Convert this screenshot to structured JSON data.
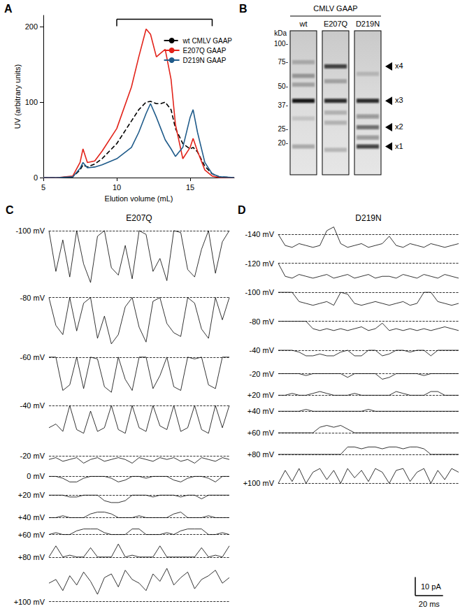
{
  "chart_data": [
    {
      "type": "line",
      "title": "A",
      "xlabel": "Elution volume (mL)",
      "ylabel": "UV (arbitrary units)",
      "x": [
        5,
        6,
        7,
        7.5,
        7.7,
        8,
        8.5,
        9,
        10,
        11,
        11.5,
        12,
        12.3,
        12.7,
        13,
        13.3,
        13.7,
        14,
        14.5,
        15,
        15.2,
        15.5,
        16,
        16.5,
        17,
        18
      ],
      "series": [
        {
          "name": "wt CMLV GAAP",
          "color": "#000000",
          "line_style": "dashed",
          "values": [
            0,
            0,
            1,
            10,
            17,
            14,
            18,
            25,
            45,
            75,
            90,
            100,
            101,
            98,
            98,
            100,
            90,
            65,
            45,
            38,
            40,
            34,
            15,
            5,
            1,
            0
          ]
        },
        {
          "name": "E207Q GAAP",
          "color": "#e2231a",
          "line_style": "solid",
          "values": [
            0,
            0,
            2,
            20,
            38,
            20,
            22,
            35,
            65,
            120,
            160,
            197,
            190,
            160,
            165,
            170,
            130,
            70,
            25,
            40,
            52,
            35,
            10,
            2,
            0,
            0
          ]
        },
        {
          "name": "D219N GAAP",
          "color": "#1f5b8a",
          "line_style": "solid",
          "values": [
            0,
            0,
            1,
            12,
            20,
            13,
            14,
            17,
            25,
            40,
            60,
            85,
            98,
            80,
            65,
            50,
            38,
            28,
            40,
            80,
            90,
            60,
            20,
            5,
            1,
            0
          ]
        }
      ],
      "xlim": [
        5,
        18
      ],
      "xticks": [
        5,
        10,
        15
      ],
      "ylim": [
        0,
        215
      ],
      "yticks": [
        0,
        100,
        200
      ],
      "grid": false,
      "legend": "upper right",
      "annotations": [
        {
          "text": "*",
          "x": 7.7,
          "y": 48
        }
      ],
      "bracket": {
        "x": [
          10,
          16.5
        ],
        "y": 210
      }
    },
    {
      "type": "gel",
      "title": "B",
      "header": "CMLV GAAP",
      "unit": "kDa",
      "log": true,
      "ylim": [
        12,
        125
      ],
      "yticks": [
        {
          "value": 100,
          "label": "100-"
        },
        {
          "value": 75,
          "label": "75-"
        },
        {
          "value": 50,
          "label": "50-"
        },
        {
          "value": 37,
          "label": "37-"
        },
        {
          "value": 25,
          "label": "25-"
        },
        {
          "value": 20,
          "label": "20-"
        }
      ],
      "lanes": [
        {
          "name": "wt",
          "bands": [
            {
              "kda": 75,
              "intensity": 0.2
            },
            {
              "kda": 60,
              "intensity": 0.3
            },
            {
              "kda": 52,
              "intensity": 0.25
            },
            {
              "kda": 40,
              "intensity": 0.95
            },
            {
              "kda": 30,
              "intensity": 0.12
            },
            {
              "kda": 19,
              "intensity": 0.25
            }
          ]
        },
        {
          "name": "E207Q",
          "bands": [
            {
              "kda": 70,
              "intensity": 0.75
            },
            {
              "kda": 55,
              "intensity": 0.25
            },
            {
              "kda": 40,
              "intensity": 0.85
            },
            {
              "kda": 33,
              "intensity": 0.2
            },
            {
              "kda": 28,
              "intensity": 0.2
            },
            {
              "kda": 18,
              "intensity": 0.2
            }
          ]
        },
        {
          "name": "D219N",
          "bands": [
            {
              "kda": 62,
              "intensity": 0.15
            },
            {
              "kda": 40,
              "intensity": 0.85
            },
            {
              "kda": 31,
              "intensity": 0.35
            },
            {
              "kda": 26,
              "intensity": 0.55
            },
            {
              "kda": 22,
              "intensity": 0.35
            },
            {
              "kda": 19,
              "intensity": 0.75
            }
          ]
        }
      ],
      "arrows": [
        {
          "label": "x4",
          "kda": 70
        },
        {
          "label": "x3",
          "kda": 40
        },
        {
          "label": "x2",
          "kda": 26
        },
        {
          "label": "x1",
          "kda": 19
        }
      ]
    },
    {
      "type": "traces",
      "title": "C",
      "subtitle": "E207Q",
      "tick_labels": false,
      "x": [
        0,
        5,
        10,
        15,
        20,
        25,
        30,
        35,
        40,
        45,
        50,
        55,
        60,
        65,
        70,
        75,
        80,
        85,
        90,
        95,
        100,
        105,
        110,
        115,
        120,
        125,
        130
      ],
      "xlim": [
        0,
        130
      ],
      "baseline": 0,
      "traces": [
        {
          "label": "-100 mV",
          "ylim": [
            -32,
            3
          ],
          "values": [
            0,
            -22,
            -5,
            -25,
            0,
            -18,
            -28,
            -3,
            0,
            -20,
            -24,
            -8,
            -26,
            0,
            -2,
            -22,
            -15,
            -27,
            0,
            -1,
            -21,
            -25,
            -10,
            0,
            -23,
            -6,
            0
          ]
        },
        {
          "label": "-80 mV",
          "ylim": [
            -28,
            3
          ],
          "values": [
            0,
            -15,
            -20,
            0,
            -18,
            -3,
            0,
            -22,
            -10,
            -25,
            -20,
            -5,
            0,
            -16,
            -24,
            -2,
            0,
            -14,
            -19,
            -21,
            0,
            -3,
            -17,
            -22,
            0,
            -12,
            0
          ]
        },
        {
          "label": "-60 mV",
          "ylim": [
            -22,
            3
          ],
          "values": [
            0,
            0,
            -18,
            -15,
            0,
            -17,
            0,
            -1,
            -16,
            -19,
            0,
            -12,
            -18,
            0,
            0,
            -17,
            -10,
            0,
            -16,
            -18,
            0,
            -1,
            0,
            -15,
            -17,
            0,
            0
          ]
        },
        {
          "label": "-40 mV",
          "ylim": [
            -22,
            3
          ],
          "values": [
            -12,
            -10,
            -14,
            0,
            -13,
            -15,
            -3,
            -14,
            -12,
            0,
            -13,
            -15,
            0,
            -12,
            -14,
            0,
            -11,
            -13,
            0,
            -14,
            -12,
            0,
            -13,
            -15,
            0,
            -12,
            0
          ]
        },
        {
          "label": "-20 mV",
          "ylim": [
            -6,
            4
          ],
          "values": [
            -2,
            -1,
            -3,
            -2,
            -1,
            -4,
            -2,
            -1,
            -3,
            -2,
            -1,
            -2,
            -4,
            -1,
            -2,
            -3,
            -1,
            -2,
            -1,
            -3,
            -2,
            -4,
            -1,
            -2,
            -3,
            -1,
            -2
          ]
        },
        {
          "label": "0 mV",
          "ylim": [
            -6,
            4
          ],
          "values": [
            0,
            0,
            -1,
            -3,
            -3,
            -1,
            0,
            0,
            0,
            -1,
            -3,
            -2,
            0,
            0,
            -1,
            0,
            0,
            0,
            -2,
            -3,
            -1,
            0,
            0,
            -1,
            -3,
            0,
            0
          ]
        },
        {
          "label": "+20 mV",
          "ylim": [
            -6,
            3
          ],
          "values": [
            0,
            0,
            0,
            -1,
            -1,
            0,
            0,
            0,
            -3,
            -4,
            -4,
            -3,
            0,
            0,
            0,
            -1,
            0,
            0,
            0,
            -1,
            0,
            0,
            -2,
            0,
            0,
            0,
            0
          ]
        },
        {
          "label": "+40 mV",
          "ylim": [
            -3,
            5
          ],
          "values": [
            0,
            0,
            1,
            0,
            0,
            0,
            2,
            3,
            3,
            2,
            0,
            0,
            0,
            1,
            0,
            0,
            0,
            0,
            2,
            3,
            0,
            0,
            0,
            1,
            0,
            0,
            0
          ]
        },
        {
          "label": "+60 mV",
          "ylim": [
            -3,
            5
          ],
          "values": [
            0,
            1,
            0,
            0,
            2,
            3,
            3,
            3,
            1,
            0,
            0,
            0,
            3,
            3,
            0,
            0,
            0,
            1,
            0,
            2,
            3,
            3,
            3,
            0,
            0,
            1,
            0
          ]
        },
        {
          "label": "+80 mV",
          "ylim": [
            -3,
            8
          ],
          "values": [
            0,
            6,
            0,
            1,
            0,
            0,
            5,
            0,
            0,
            0,
            7,
            0,
            1,
            0,
            0,
            0,
            6,
            0,
            0,
            0,
            0,
            0,
            5,
            0,
            1,
            0,
            6
          ]
        },
        {
          "label": "+100 mV",
          "ylim": [
            -2,
            20
          ],
          "values": [
            10,
            12,
            6,
            14,
            9,
            16,
            11,
            4,
            13,
            15,
            8,
            17,
            12,
            10,
            6,
            15,
            11,
            18,
            9,
            13,
            16,
            7,
            12,
            14,
            17,
            10,
            13
          ]
        }
      ]
    },
    {
      "type": "traces",
      "title": "D",
      "subtitle": "D219N",
      "tick_labels": false,
      "x": [
        0,
        5,
        10,
        15,
        20,
        25,
        30,
        35,
        40,
        45,
        50,
        55,
        60,
        65,
        70,
        75,
        80,
        85,
        90,
        95,
        100,
        105,
        110,
        115,
        120,
        125,
        130
      ],
      "xlim": [
        0,
        130
      ],
      "baseline": 0,
      "traces": [
        {
          "label": "-140 mV",
          "ylim": [
            -10,
            5
          ],
          "values": [
            0,
            -6,
            -7,
            -5,
            -6,
            -7,
            -6,
            2,
            4,
            -5,
            -7,
            -6,
            -5,
            -7,
            -6,
            -5,
            -1,
            -6,
            -7,
            -5,
            -6,
            -7,
            -5,
            -6,
            -7,
            -6,
            -5
          ]
        },
        {
          "label": "-120 mV",
          "ylim": [
            -10,
            3
          ],
          "values": [
            0,
            -7,
            -8,
            -6,
            -7,
            -8,
            -7,
            -6,
            -8,
            -7,
            -6,
            -8,
            -7,
            -6,
            -8,
            -7,
            -7,
            -8,
            -6,
            -7,
            -8,
            -6,
            -7,
            -8,
            -6,
            -7,
            -8
          ]
        },
        {
          "label": "-100 mV",
          "ylim": [
            -10,
            3
          ],
          "values": [
            0,
            0,
            0,
            -5,
            -6,
            -7,
            -6,
            -5,
            -7,
            0,
            -1,
            -6,
            -7,
            -6,
            -5,
            -6,
            -7,
            -6,
            -5,
            -7,
            -6,
            0,
            0,
            -5,
            -6,
            -7,
            -6
          ]
        },
        {
          "label": "-80 mV",
          "ylim": [
            -10,
            3
          ],
          "values": [
            0,
            0,
            0,
            0,
            0,
            -4,
            -5,
            -4,
            -5,
            -4,
            -5,
            -4,
            -3,
            -5,
            -4,
            -1,
            -5,
            -4,
            -5,
            -4,
            -5,
            -4,
            -5,
            -4,
            -3,
            -4,
            -5
          ]
        },
        {
          "label": "-40 mV",
          "ylim": [
            -7,
            3
          ],
          "values": [
            0,
            0,
            0,
            -1,
            -3,
            -3,
            -2,
            -3,
            -3,
            -1,
            0,
            -3,
            -3,
            0,
            0,
            -3,
            -2,
            0,
            0,
            -1,
            0,
            0,
            -3,
            0,
            0,
            0,
            0
          ]
        },
        {
          "label": "-20 mV",
          "ylim": [
            -5,
            3
          ],
          "values": [
            0,
            0,
            0,
            0,
            -1,
            0,
            0,
            0,
            0,
            0,
            -2,
            0,
            0,
            0,
            0,
            -3,
            -2,
            0,
            0,
            0,
            0,
            -1,
            0,
            0,
            0,
            0,
            0
          ]
        },
        {
          "label": "+20 mV",
          "ylim": [
            -3,
            4
          ],
          "values": [
            0,
            0,
            1,
            0,
            0,
            1,
            2,
            1,
            0,
            0,
            0,
            1,
            0,
            0,
            0,
            0,
            0,
            2,
            1,
            0,
            0,
            0,
            2,
            2,
            0,
            0,
            0
          ]
        },
        {
          "label": "+40 mV",
          "ylim": [
            -3,
            3
          ],
          "values": [
            0,
            0,
            0,
            0,
            1,
            0,
            0,
            0,
            0,
            0,
            0,
            0,
            0,
            1,
            0,
            0,
            0,
            0,
            0,
            0,
            0,
            0,
            0,
            0,
            0,
            0,
            0
          ]
        },
        {
          "label": "+60 mV",
          "ylim": [
            -3,
            6
          ],
          "values": [
            0,
            0,
            0,
            0,
            0,
            0,
            3,
            4,
            3,
            4,
            2,
            0,
            0,
            0,
            0,
            0,
            0,
            0,
            0,
            0,
            0,
            0,
            0,
            0,
            0,
            0,
            0
          ]
        },
        {
          "label": "+80 mV",
          "ylim": [
            -3,
            6
          ],
          "values": [
            0,
            0,
            0,
            0,
            0,
            0,
            0,
            0,
            0,
            0,
            4,
            4,
            3,
            4,
            4,
            3,
            4,
            4,
            3,
            4,
            4,
            3,
            0,
            0,
            0,
            0,
            0
          ]
        },
        {
          "label": "+100 mV",
          "ylim": [
            -2,
            10
          ],
          "values": [
            0,
            7,
            1,
            8,
            0,
            6,
            8,
            2,
            7,
            0,
            8,
            3,
            7,
            1,
            8,
            6,
            0,
            7,
            8,
            1,
            6,
            8,
            0,
            7,
            2,
            8,
            6
          ]
        }
      ],
      "scale_bar": {
        "x": 20,
        "x_label": "20 ms",
        "y": 10,
        "y_label": "10 pA"
      }
    }
  ]
}
